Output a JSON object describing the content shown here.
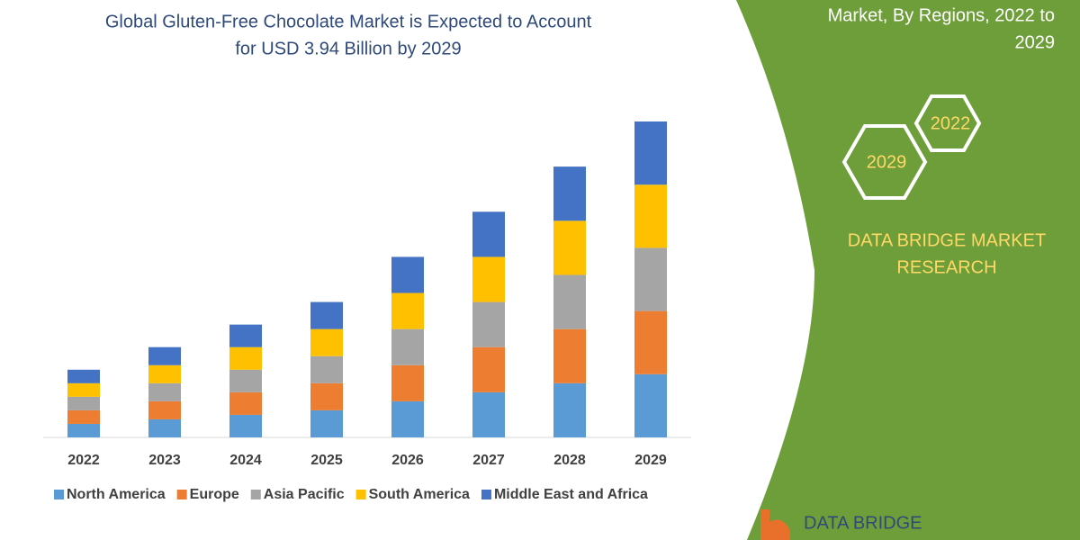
{
  "chart_data": {
    "type": "bar",
    "stacked": true,
    "title": [
      "Global Gluten-Free Chocolate Market is Expected to Account",
      "for USD 3.94 Billion by 2029"
    ],
    "categories": [
      "2022",
      "2023",
      "2024",
      "2025",
      "2026",
      "2027",
      "2028",
      "2029"
    ],
    "series": [
      {
        "name": "North America",
        "color": "#5b9bd5",
        "values": [
          15,
          20,
          25,
          30,
          40,
          50,
          60,
          70
        ]
      },
      {
        "name": "Europe",
        "color": "#ed7d31",
        "values": [
          15,
          20,
          25,
          30,
          40,
          50,
          60,
          70
        ]
      },
      {
        "name": "Asia Pacific",
        "color": "#a5a5a5",
        "values": [
          15,
          20,
          25,
          30,
          40,
          50,
          60,
          70
        ]
      },
      {
        "name": "South America",
        "color": "#ffc000",
        "values": [
          15,
          20,
          25,
          30,
          40,
          50,
          60,
          70
        ]
      },
      {
        "name": "Middle East and Africa",
        "color": "#4472c4",
        "values": [
          15,
          20,
          25,
          30,
          40,
          50,
          60,
          70
        ]
      }
    ],
    "ylim": [
      0,
      350
    ],
    "legend": "bottom"
  },
  "panel": {
    "subtitle": [
      "Market, By Regions, 2022 to",
      "2029"
    ],
    "hexagons": [
      "2022",
      "2029"
    ],
    "brand": [
      "DATA BRIDGE MARKET",
      "RESEARCH"
    ],
    "logo": "DATA BRIDGE"
  }
}
